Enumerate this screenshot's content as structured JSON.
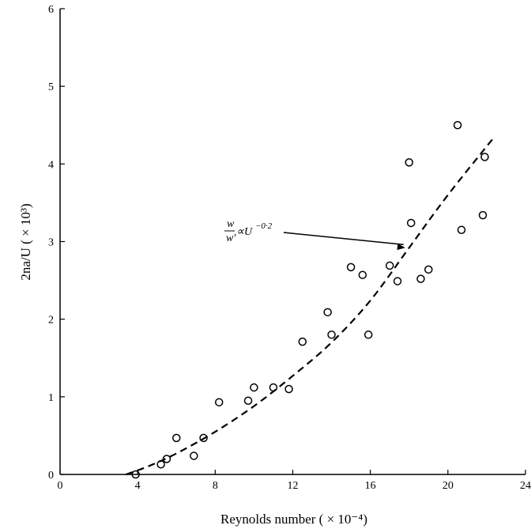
{
  "chart_data": {
    "type": "scatter",
    "xlabel": "Reynolds number ( × 10⁻⁴)",
    "ylabel": "2na/U ( × 10³)",
    "xlim": [
      0,
      24
    ],
    "ylim": [
      0,
      6
    ],
    "xticks": [
      0,
      4,
      8,
      12,
      16,
      20,
      24
    ],
    "yticks": [
      0,
      1,
      2,
      3,
      4,
      5,
      6
    ],
    "grid": false,
    "points": [
      {
        "x": 3.9,
        "y": 0.0
      },
      {
        "x": 5.2,
        "y": 0.13
      },
      {
        "x": 5.5,
        "y": 0.2
      },
      {
        "x": 6.0,
        "y": 0.47
      },
      {
        "x": 6.9,
        "y": 0.24
      },
      {
        "x": 7.4,
        "y": 0.47
      },
      {
        "x": 8.2,
        "y": 0.93
      },
      {
        "x": 9.7,
        "y": 0.95
      },
      {
        "x": 10.0,
        "y": 1.12
      },
      {
        "x": 11.0,
        "y": 1.12
      },
      {
        "x": 11.8,
        "y": 1.1
      },
      {
        "x": 12.5,
        "y": 1.71
      },
      {
        "x": 13.8,
        "y": 2.09
      },
      {
        "x": 14.0,
        "y": 1.8
      },
      {
        "x": 15.0,
        "y": 2.67
      },
      {
        "x": 15.6,
        "y": 2.57
      },
      {
        "x": 15.9,
        "y": 1.8
      },
      {
        "x": 17.0,
        "y": 2.69
      },
      {
        "x": 17.4,
        "y": 2.49
      },
      {
        "x": 18.0,
        "y": 4.02
      },
      {
        "x": 18.1,
        "y": 3.24
      },
      {
        "x": 18.6,
        "y": 2.52
      },
      {
        "x": 19.0,
        "y": 2.64
      },
      {
        "x": 20.5,
        "y": 4.5
      },
      {
        "x": 20.7,
        "y": 3.15
      },
      {
        "x": 21.8,
        "y": 3.34
      },
      {
        "x": 21.9,
        "y": 4.09
      }
    ],
    "fit_curve": {
      "style": "dashed",
      "x": [
        3.4,
        4.5,
        6,
        8,
        10,
        12,
        14,
        16,
        18,
        20,
        22.4
      ],
      "y": [
        0.0,
        0.1,
        0.27,
        0.55,
        0.88,
        1.27,
        1.7,
        2.24,
        2.92,
        3.6,
        4.35
      ]
    },
    "annotation": {
      "text_prefix": "w",
      "text_denominator": "w'",
      "text_middle": "∝U",
      "text_exponent": "−0·2",
      "arrow_to": {
        "x": 17.8,
        "y": 2.92
      }
    }
  }
}
